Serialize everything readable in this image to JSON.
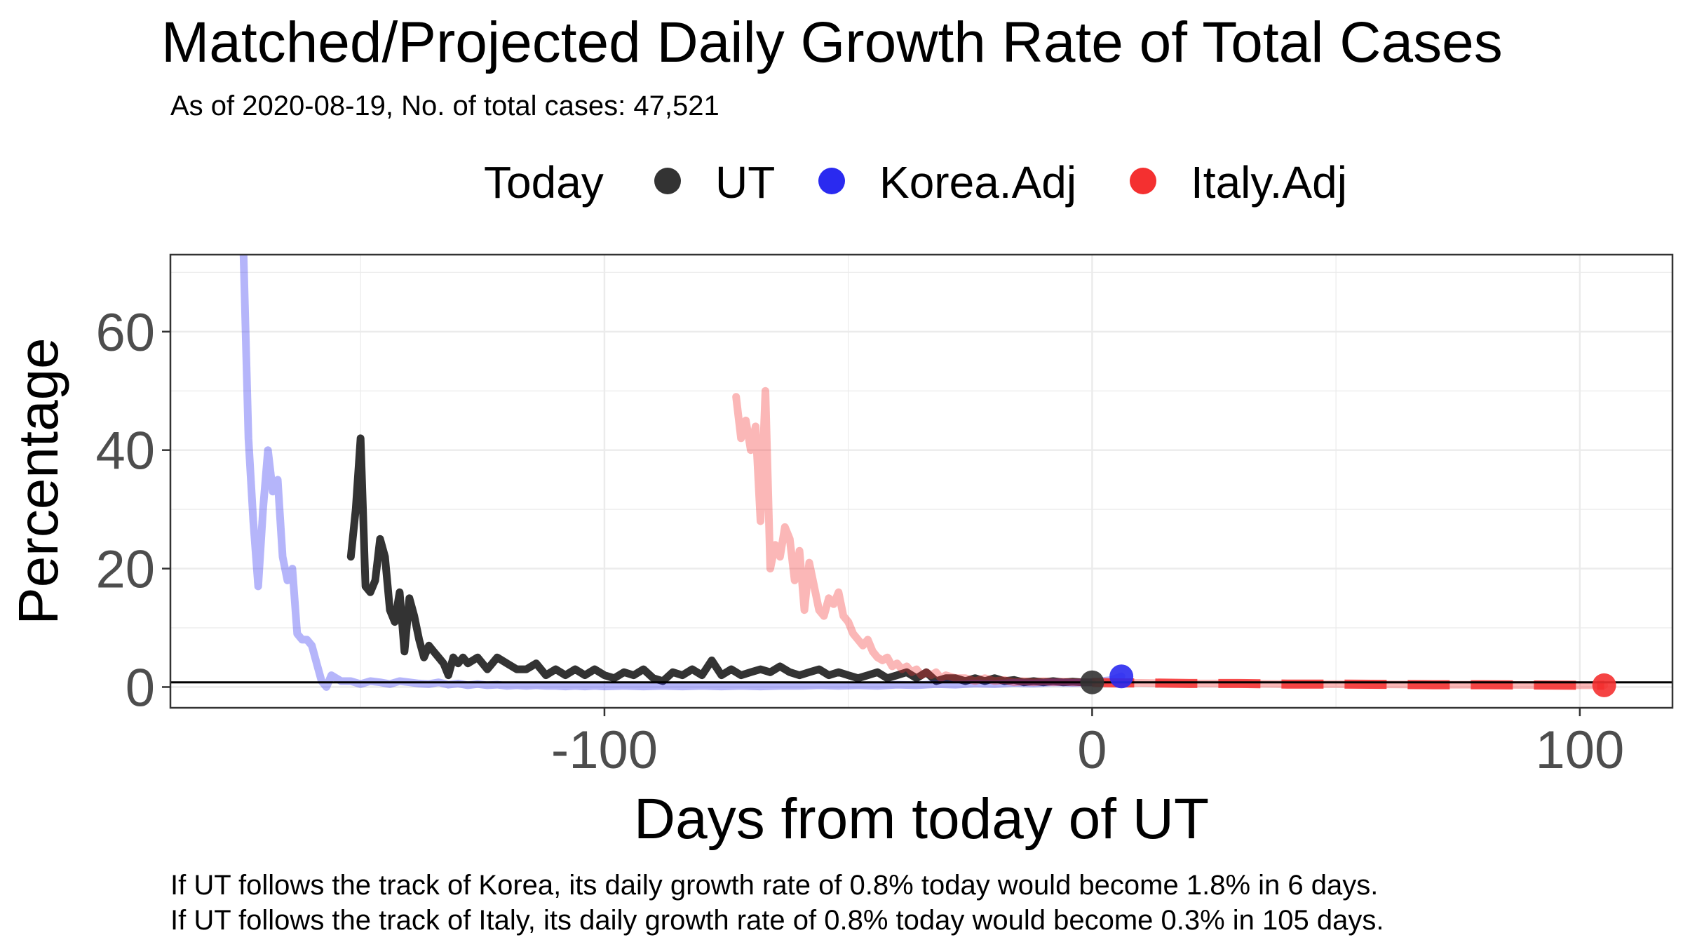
{
  "chart_data": {
    "type": "line",
    "title": "Matched/Projected Daily Growth Rate of Total Cases",
    "subtitle": "As of 2020-08-19, No. of total cases: 47,521",
    "xlabel": "Days from today of UT",
    "ylabel": "Percentage",
    "xlim": [
      -189,
      119
    ],
    "ylim": [
      -3.5,
      73
    ],
    "x_ticks": [
      -100,
      0,
      100
    ],
    "x_tick_labels": [
      "-100",
      "0",
      "100"
    ],
    "y_ticks": [
      0,
      20,
      40,
      60
    ],
    "y_tick_labels": [
      "0",
      "20",
      "40",
      "60"
    ],
    "grid": true,
    "legend": {
      "position": "top",
      "title": "Today",
      "entries": [
        {
          "name": "UT",
          "color": "#333333"
        },
        {
          "name": "Korea.Adj",
          "color": "#2a2af0"
        },
        {
          "name": "Italy.Adj",
          "color": "#f43030"
        }
      ]
    },
    "reference_line": {
      "y": 0.8
    },
    "series": [
      {
        "name": "UT",
        "color": "#333333",
        "x": [
          -152,
          -151,
          -150,
          -149,
          -148,
          -147,
          -146,
          -145,
          -144,
          -143,
          -142,
          -141,
          -140,
          -139,
          -138,
          -137,
          -136,
          -135,
          -134,
          -133,
          -132,
          -131,
          -130,
          -129,
          -128,
          -126,
          -124,
          -122,
          -120,
          -118,
          -116,
          -114,
          -112,
          -110,
          -108,
          -106,
          -104,
          -102,
          -100,
          -98,
          -96,
          -94,
          -92,
          -90,
          -88,
          -86,
          -84,
          -82,
          -80,
          -78,
          -76,
          -74,
          -72,
          -70,
          -68,
          -66,
          -64,
          -62,
          -60,
          -58,
          -56,
          -54,
          -52,
          -50,
          -48,
          -46,
          -44,
          -42,
          -40,
          -38,
          -36,
          -34,
          -32,
          -30,
          -28,
          -26,
          -24,
          -22,
          -20,
          -18,
          -16,
          -14,
          -12,
          -10,
          -8,
          -6,
          -4,
          -2,
          0
        ],
        "y": [
          22,
          30,
          42,
          17,
          16,
          18,
          25,
          22,
          13,
          11,
          16,
          6,
          15,
          12,
          8,
          5,
          7,
          6,
          5,
          4,
          2,
          5,
          4,
          5,
          4,
          5,
          3,
          5,
          4,
          3,
          3,
          4,
          2,
          3,
          2,
          3,
          2,
          3,
          2,
          1.5,
          2.5,
          2,
          3,
          1.5,
          1,
          2.5,
          2,
          3,
          2,
          4.5,
          2,
          3,
          2,
          2.5,
          3,
          2.5,
          3.5,
          2.5,
          2,
          2.5,
          3,
          2,
          2.5,
          2,
          1.5,
          2,
          2.5,
          1.5,
          2,
          2.5,
          1.5,
          2.5,
          1,
          1.5,
          1.5,
          1,
          1.5,
          1,
          1.5,
          1,
          1.2,
          0.8,
          1,
          0.8,
          1,
          0.8,
          0.9,
          0.8,
          0.8
        ]
      },
      {
        "name": "Korea.Adj",
        "color": "#2a2af0",
        "x": [
          -174,
          -173,
          -172,
          -171,
          -170,
          -169,
          -168,
          -167,
          -166,
          -165,
          -164,
          -163,
          -162,
          -161,
          -160,
          -159,
          -158,
          -157,
          -156,
          -154,
          -152,
          -150,
          -148,
          -146,
          -144,
          -142,
          -140,
          -138,
          -136,
          -134,
          -132,
          -130,
          -128,
          -126,
          -124,
          -122,
          -120,
          -118,
          -116,
          -114,
          -112,
          -110,
          -108,
          -106,
          -104,
          -102,
          -100,
          -96,
          -92,
          -88,
          -84,
          -80,
          -76,
          -72,
          -68,
          -64,
          -60,
          -56,
          -52,
          -48,
          -44,
          -40,
          -36,
          -32,
          -28,
          -24,
          -20,
          -16,
          -12,
          -8,
          -4,
          0,
          2,
          4,
          6
        ],
        "y": [
          73,
          42,
          28,
          17,
          30,
          40,
          33,
          35,
          22,
          18,
          20,
          9,
          8,
          8,
          7,
          4,
          1,
          0,
          2,
          1,
          1,
          0.5,
          1,
          0.8,
          0.5,
          1,
          0.8,
          0.6,
          0.5,
          0.8,
          0.4,
          0.6,
          0.3,
          0.5,
          0.3,
          0.4,
          0.2,
          0.3,
          0.2,
          0.3,
          0.2,
          0.2,
          0.1,
          0.2,
          0.1,
          0.2,
          0.1,
          0.2,
          0.1,
          0.2,
          0.1,
          0.2,
          0.1,
          0.2,
          0.1,
          0.2,
          0.2,
          0.3,
          0.2,
          0.3,
          0.2,
          0.4,
          0.3,
          0.5,
          0.4,
          0.6,
          0.5,
          0.7,
          0.6,
          0.8,
          0.7,
          0.8,
          1.0,
          1.2,
          1.8
        ]
      },
      {
        "name": "Italy.Adj",
        "color": "#f43030",
        "x": [
          -73,
          -72,
          -71,
          -70,
          -69,
          -68,
          -67,
          -66,
          -65,
          -64,
          -63,
          -62,
          -61,
          -60,
          -59,
          -58,
          -57,
          -56,
          -55,
          -54,
          -53,
          -52,
          -51,
          -50,
          -49,
          -48,
          -47,
          -46,
          -45,
          -44,
          -43,
          -42,
          -41,
          -40,
          -39,
          -38,
          -37,
          -36,
          -35,
          -34,
          -33,
          -32,
          -31,
          -30,
          -28,
          -26,
          -24,
          -22,
          -20,
          -18,
          -16,
          -14,
          -12,
          -10,
          -8,
          -6,
          -4,
          -2,
          0,
          5,
          10,
          20,
          30,
          40,
          50,
          60,
          70,
          80,
          90,
          100,
          105
        ],
        "y": [
          49,
          42,
          45,
          40,
          44,
          28,
          50,
          20,
          24,
          22,
          27,
          25,
          18,
          23,
          13,
          21,
          17,
          13,
          12,
          15,
          14,
          16,
          12,
          11,
          9,
          8,
          7,
          8,
          6,
          5,
          4.5,
          5,
          3.5,
          4,
          3,
          3.5,
          2.5,
          3,
          2,
          2.5,
          2,
          2.5,
          1.5,
          2,
          1.5,
          1.5,
          1,
          1.5,
          1,
          1.2,
          0.8,
          1,
          0.8,
          1,
          0.8,
          0.9,
          0.8,
          0.8,
          0.8,
          0.7,
          0.7,
          0.6,
          0.6,
          0.5,
          0.5,
          0.45,
          0.4,
          0.4,
          0.35,
          0.3,
          0.3
        ]
      }
    ],
    "today_points": [
      {
        "series": "UT",
        "x": 0,
        "y": 0.8
      },
      {
        "series": "Korea.Adj",
        "x": 6,
        "y": 1.8
      },
      {
        "series": "Italy.Adj",
        "x": 105,
        "y": 0.3
      }
    ]
  },
  "notes": [
    "If UT follows the track of Korea, its daily growth rate of 0.8% today would become 1.8% in 6 days.",
    "If UT follows the track of Italy, its daily growth rate of 0.8% today would become 0.3% in 105 days."
  ]
}
